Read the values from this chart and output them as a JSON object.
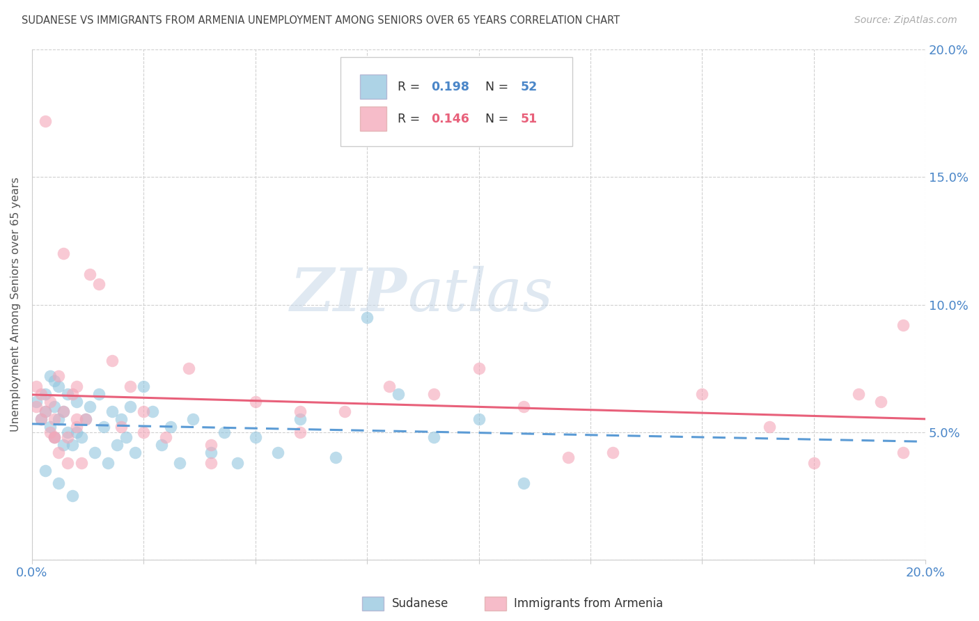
{
  "title": "SUDANESE VS IMMIGRANTS FROM ARMENIA UNEMPLOYMENT AMONG SENIORS OVER 65 YEARS CORRELATION CHART",
  "source": "Source: ZipAtlas.com",
  "ylabel": "Unemployment Among Seniors over 65 years",
  "ytick_labels": [
    "",
    "5.0%",
    "10.0%",
    "15.0%",
    "20.0%"
  ],
  "ytick_values": [
    0.0,
    0.05,
    0.1,
    0.15,
    0.2
  ],
  "xtick_values": [
    0.0,
    0.025,
    0.05,
    0.075,
    0.1,
    0.125,
    0.15,
    0.175,
    0.2
  ],
  "xlim": [
    0.0,
    0.2
  ],
  "ylim": [
    0.0,
    0.2
  ],
  "color_sudanese": "#92c5de",
  "color_armenia": "#f4a6b8",
  "color_sudanese_line": "#5b9bd5",
  "color_armenia_line": "#e8607a",
  "watermark_zip": "ZIP",
  "watermark_atlas": "atlas",
  "legend_r1_label": "R = ",
  "legend_r1_val": "0.198",
  "legend_n1_label": "N = ",
  "legend_n1_val": "52",
  "legend_r2_label": "R = ",
  "legend_r2_val": "0.146",
  "legend_n2_label": "N = ",
  "legend_n2_val": "51",
  "sud_x": [
    0.001,
    0.002,
    0.003,
    0.003,
    0.004,
    0.004,
    0.005,
    0.005,
    0.005,
    0.006,
    0.006,
    0.007,
    0.007,
    0.008,
    0.008,
    0.009,
    0.01,
    0.01,
    0.011,
    0.012,
    0.013,
    0.014,
    0.015,
    0.016,
    0.017,
    0.018,
    0.019,
    0.02,
    0.021,
    0.022,
    0.023,
    0.025,
    0.027,
    0.029,
    0.031,
    0.033,
    0.036,
    0.04,
    0.043,
    0.046,
    0.05,
    0.055,
    0.06,
    0.068,
    0.075,
    0.082,
    0.09,
    0.1,
    0.11,
    0.003,
    0.006,
    0.009
  ],
  "sud_y": [
    0.062,
    0.055,
    0.058,
    0.065,
    0.052,
    0.072,
    0.048,
    0.06,
    0.07,
    0.055,
    0.068,
    0.045,
    0.058,
    0.05,
    0.065,
    0.045,
    0.05,
    0.062,
    0.048,
    0.055,
    0.06,
    0.042,
    0.065,
    0.052,
    0.038,
    0.058,
    0.045,
    0.055,
    0.048,
    0.06,
    0.042,
    0.068,
    0.058,
    0.045,
    0.052,
    0.038,
    0.055,
    0.042,
    0.05,
    0.038,
    0.048,
    0.042,
    0.055,
    0.04,
    0.095,
    0.065,
    0.048,
    0.055,
    0.03,
    0.035,
    0.03,
    0.025
  ],
  "arm_x": [
    0.001,
    0.001,
    0.002,
    0.002,
    0.003,
    0.003,
    0.004,
    0.004,
    0.005,
    0.005,
    0.006,
    0.006,
    0.007,
    0.007,
    0.008,
    0.009,
    0.01,
    0.01,
    0.011,
    0.012,
    0.013,
    0.015,
    0.018,
    0.02,
    0.022,
    0.025,
    0.03,
    0.035,
    0.04,
    0.05,
    0.06,
    0.07,
    0.09,
    0.11,
    0.13,
    0.15,
    0.165,
    0.175,
    0.185,
    0.19,
    0.195,
    0.195,
    0.005,
    0.008,
    0.01,
    0.025,
    0.06,
    0.08,
    0.1,
    0.12,
    0.04
  ],
  "arm_y": [
    0.06,
    0.068,
    0.055,
    0.065,
    0.058,
    0.172,
    0.05,
    0.062,
    0.048,
    0.055,
    0.072,
    0.042,
    0.058,
    0.12,
    0.048,
    0.065,
    0.052,
    0.068,
    0.038,
    0.055,
    0.112,
    0.108,
    0.078,
    0.052,
    0.068,
    0.058,
    0.048,
    0.075,
    0.045,
    0.062,
    0.05,
    0.058,
    0.065,
    0.06,
    0.042,
    0.065,
    0.052,
    0.038,
    0.065,
    0.062,
    0.092,
    0.042,
    0.048,
    0.038,
    0.055,
    0.05,
    0.058,
    0.068,
    0.075,
    0.04,
    0.038
  ]
}
